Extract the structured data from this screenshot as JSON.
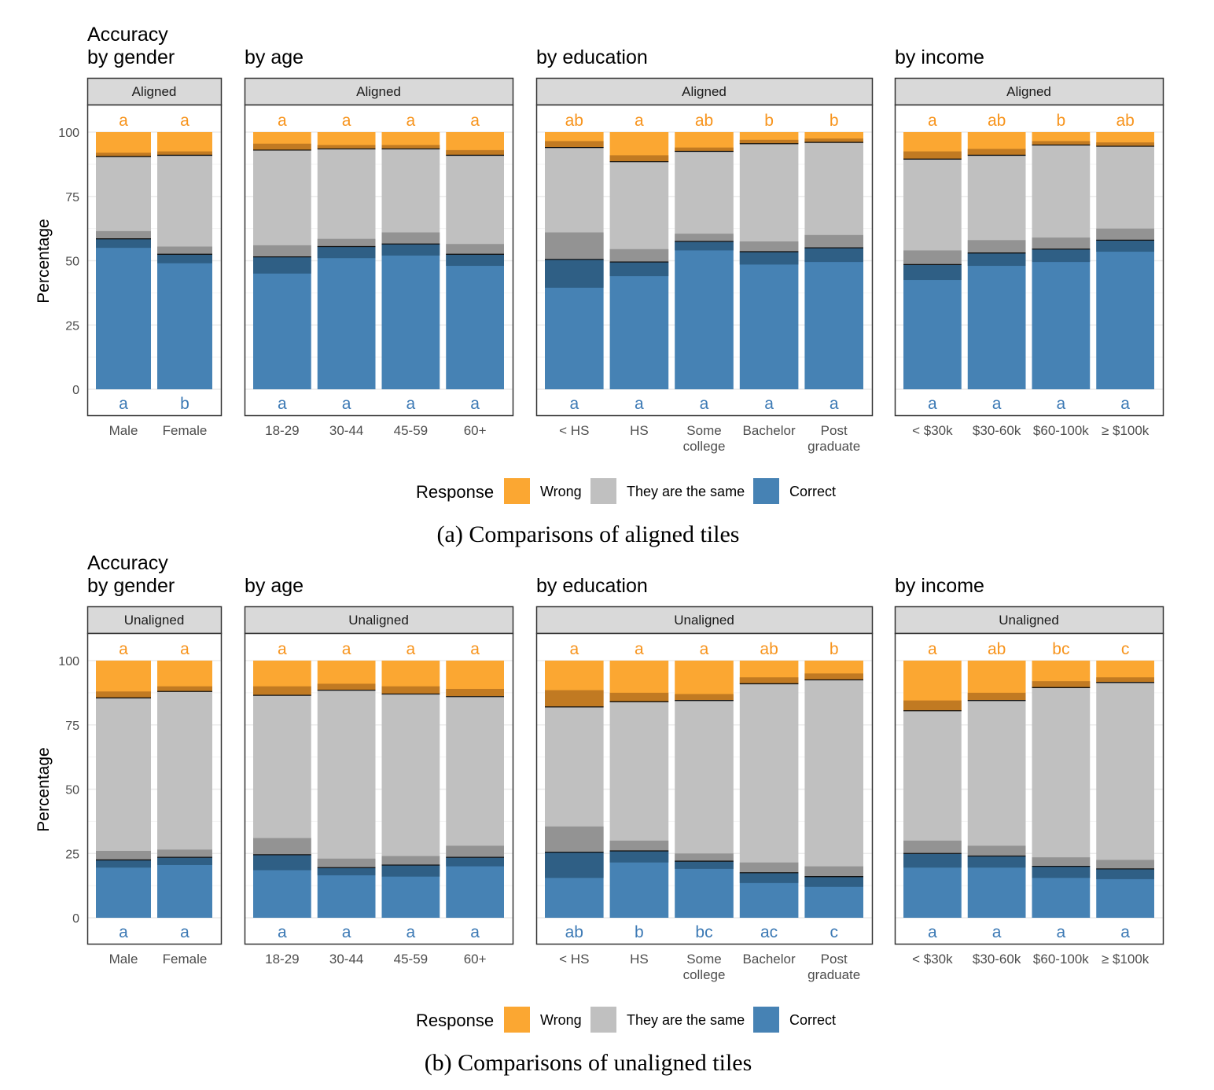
{
  "colors": {
    "wrong": "#fba732",
    "wrong_overlay": "#c17a22",
    "same": "#c0c0c0",
    "same_overlay": "#939393",
    "correct": "#4682b4",
    "correct_overlay": "#2f5f85",
    "top_letters": "#f7941d",
    "bottom_letters": "#3d7ab5",
    "strip": "#d9d9d9",
    "grid": "#ebebeb"
  },
  "legend": {
    "title": "Response",
    "items": [
      {
        "label": "Wrong",
        "color": "#fba732"
      },
      {
        "label": "They are the same",
        "color": "#c0c0c0"
      },
      {
        "label": "Correct",
        "color": "#4682b4"
      }
    ]
  },
  "chart_data": [
    {
      "type": "bar",
      "stacked": true,
      "caption": "(a) Comparisons of aligned tiles",
      "strip_label": "Aligned",
      "ylabel": "Percentage",
      "ylim": [
        0,
        100
      ],
      "yticks": [
        0,
        25,
        50,
        75,
        100
      ],
      "panels": [
        {
          "title_lines": [
            "Accuracy",
            "by gender"
          ],
          "categories": [
            [
              "Male"
            ],
            [
              "Female"
            ]
          ],
          "letters_top": [
            "a",
            "a"
          ],
          "letters_bottom": [
            "a",
            "b"
          ],
          "correct": [
            58.5,
            52.5
          ],
          "correct_ci": [
            3.5,
            3.5
          ],
          "same": [
            32.0,
            38.5
          ],
          "same_ci": [
            3.0,
            3.0
          ],
          "wrong": [
            9.5,
            9.0
          ],
          "wrong_ci": [
            1.5,
            1.5
          ]
        },
        {
          "title_lines": [
            "by age"
          ],
          "categories": [
            [
              "18-29"
            ],
            [
              "30-44"
            ],
            [
              "45-59"
            ],
            [
              "60+"
            ]
          ],
          "letters_top": [
            "a",
            "a",
            "a",
            "a"
          ],
          "letters_bottom": [
            "a",
            "a",
            "a",
            "a"
          ],
          "correct": [
            51.5,
            55.5,
            56.5,
            52.5
          ],
          "correct_ci": [
            6.5,
            4.5,
            4.5,
            4.5
          ],
          "same": [
            41.5,
            38.0,
            37.0,
            38.5
          ],
          "same_ci": [
            4.5,
            3.0,
            4.5,
            4.0
          ],
          "wrong": [
            7.0,
            6.5,
            6.5,
            9.0
          ],
          "wrong_ci": [
            2.5,
            1.5,
            1.5,
            2.0
          ]
        },
        {
          "title_lines": [
            "by education"
          ],
          "categories": [
            [
              "< HS"
            ],
            [
              "HS"
            ],
            [
              "Some",
              "college"
            ],
            [
              "Bachelor"
            ],
            [
              "Post",
              "graduate"
            ]
          ],
          "letters_top": [
            "ab",
            "a",
            "ab",
            "b",
            "b"
          ],
          "letters_bottom": [
            "a",
            "a",
            "a",
            "a",
            "a"
          ],
          "correct": [
            50.5,
            49.5,
            57.5,
            53.5,
            55.0
          ],
          "correct_ci": [
            11.0,
            5.5,
            3.5,
            5.0,
            5.5
          ],
          "same": [
            43.5,
            39.0,
            35.0,
            42.0,
            41.0
          ],
          "same_ci": [
            10.5,
            5.0,
            3.0,
            4.0,
            5.0
          ],
          "wrong": [
            6.0,
            11.5,
            7.5,
            4.5,
            4.0
          ],
          "wrong_ci": [
            2.5,
            2.5,
            1.5,
            1.5,
            1.5
          ]
        },
        {
          "title_lines": [
            "by income"
          ],
          "categories": [
            [
              "< $30k"
            ],
            [
              "$30-60k"
            ],
            [
              "$60-100k"
            ],
            [
              "≥ $100k"
            ]
          ],
          "letters_top": [
            "a",
            "ab",
            "b",
            "ab"
          ],
          "letters_bottom": [
            "a",
            "a",
            "a",
            "a"
          ],
          "correct": [
            48.5,
            53.0,
            54.5,
            58.0
          ],
          "correct_ci": [
            6.0,
            5.0,
            5.0,
            4.5
          ],
          "same": [
            41.0,
            38.0,
            40.5,
            36.5
          ],
          "same_ci": [
            5.5,
            5.0,
            4.5,
            4.5
          ],
          "wrong": [
            10.5,
            9.0,
            5.0,
            5.5
          ],
          "wrong_ci": [
            3.0,
            2.5,
            1.5,
            1.5
          ]
        }
      ]
    },
    {
      "type": "bar",
      "stacked": true,
      "caption": "(b) Comparisons of unaligned tiles",
      "strip_label": "Unaligned",
      "ylabel": "Percentage",
      "ylim": [
        0,
        100
      ],
      "yticks": [
        0,
        25,
        50,
        75,
        100
      ],
      "panels": [
        {
          "title_lines": [
            "Accuracy",
            "by gender"
          ],
          "categories": [
            [
              "Male"
            ],
            [
              "Female"
            ]
          ],
          "letters_top": [
            "a",
            "a"
          ],
          "letters_bottom": [
            "a",
            "a"
          ],
          "correct": [
            22.5,
            23.5
          ],
          "correct_ci": [
            3.0,
            3.0
          ],
          "same": [
            63.0,
            64.5
          ],
          "same_ci": [
            3.5,
            3.0
          ],
          "wrong": [
            14.5,
            12.0
          ],
          "wrong_ci": [
            2.5,
            2.0
          ]
        },
        {
          "title_lines": [
            "by age"
          ],
          "categories": [
            [
              "18-29"
            ],
            [
              "30-44"
            ],
            [
              "45-59"
            ],
            [
              "60+"
            ]
          ],
          "letters_top": [
            "a",
            "a",
            "a",
            "a"
          ],
          "letters_bottom": [
            "a",
            "a",
            "a",
            "a"
          ],
          "correct": [
            24.5,
            19.5,
            20.5,
            23.5
          ],
          "correct_ci": [
            6.0,
            3.0,
            4.5,
            3.5
          ],
          "same": [
            62.0,
            69.0,
            66.5,
            62.5
          ],
          "same_ci": [
            6.5,
            3.5,
            3.5,
            4.5
          ],
          "wrong": [
            13.5,
            11.5,
            13.0,
            14.0
          ],
          "wrong_ci": [
            3.5,
            2.5,
            3.0,
            3.0
          ]
        },
        {
          "title_lines": [
            "by education"
          ],
          "categories": [
            [
              "< HS"
            ],
            [
              "HS"
            ],
            [
              "Some",
              "college"
            ],
            [
              "Bachelor"
            ],
            [
              "Post",
              "graduate"
            ]
          ],
          "letters_top": [
            "a",
            "a",
            "a",
            "ab",
            "b"
          ],
          "letters_bottom": [
            "ab",
            "b",
            "bc",
            "ac",
            "c"
          ],
          "correct": [
            25.5,
            26.0,
            22.0,
            17.5,
            16.0
          ],
          "correct_ci": [
            10.0,
            4.5,
            3.0,
            4.0,
            4.0
          ],
          "same": [
            56.5,
            58.0,
            62.5,
            73.5,
            76.5
          ],
          "same_ci": [
            10.0,
            4.0,
            3.0,
            4.0,
            4.0
          ],
          "wrong": [
            18.0,
            16.0,
            15.5,
            9.0,
            7.5
          ],
          "wrong_ci": [
            6.5,
            3.5,
            2.5,
            2.5,
            2.5
          ]
        },
        {
          "title_lines": [
            "by income"
          ],
          "categories": [
            [
              "< $30k"
            ],
            [
              "$30-60k"
            ],
            [
              "$60-100k"
            ],
            [
              "≥ $100k"
            ]
          ],
          "letters_top": [
            "a",
            "ab",
            "bc",
            "c"
          ],
          "letters_bottom": [
            "a",
            "a",
            "a",
            "a"
          ],
          "correct": [
            25.0,
            24.0,
            20.0,
            19.0
          ],
          "correct_ci": [
            5.5,
            4.5,
            4.5,
            4.0
          ],
          "same": [
            55.5,
            60.5,
            69.5,
            72.5
          ],
          "same_ci": [
            5.0,
            4.0,
            3.5,
            3.5
          ],
          "wrong": [
            19.5,
            15.5,
            10.5,
            8.5
          ],
          "wrong_ci": [
            4.0,
            3.0,
            2.5,
            2.0
          ]
        }
      ]
    }
  ]
}
